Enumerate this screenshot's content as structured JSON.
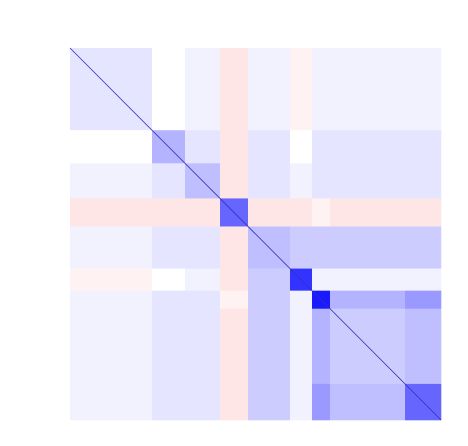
{
  "chart_data": {
    "type": "heatmap",
    "group_sizes": [
      82,
      33,
      35,
      28,
      42,
      22,
      18,
      75,
      36
    ],
    "values": [
      [
        0.1,
        0.0,
        0.05,
        -0.1,
        0.05,
        -0.05,
        0.05,
        0.05,
        0.05
      ],
      [
        0.0,
        0.3,
        0.1,
        -0.1,
        0.1,
        0.0,
        0.1,
        0.1,
        0.1
      ],
      [
        0.05,
        0.1,
        0.25,
        -0.1,
        0.1,
        0.05,
        0.1,
        0.1,
        0.1
      ],
      [
        -0.1,
        -0.1,
        -0.1,
        0.6,
        -0.1,
        -0.1,
        -0.05,
        -0.1,
        -0.1
      ],
      [
        0.05,
        0.1,
        0.1,
        -0.1,
        0.25,
        0.2,
        0.2,
        0.2,
        0.2
      ],
      [
        -0.05,
        0.0,
        0.05,
        -0.1,
        0.2,
        0.8,
        0.05,
        0.05,
        0.05
      ],
      [
        0.05,
        0.1,
        0.1,
        -0.05,
        0.2,
        0.05,
        0.9,
        0.3,
        0.4
      ],
      [
        0.05,
        0.1,
        0.1,
        -0.1,
        0.2,
        0.05,
        0.3,
        0.2,
        0.25
      ],
      [
        0.05,
        0.1,
        0.1,
        -0.1,
        0.2,
        0.05,
        0.4,
        0.25,
        0.6
      ]
    ],
    "clim": [
      -1,
      1
    ],
    "colormap": "bwr"
  }
}
